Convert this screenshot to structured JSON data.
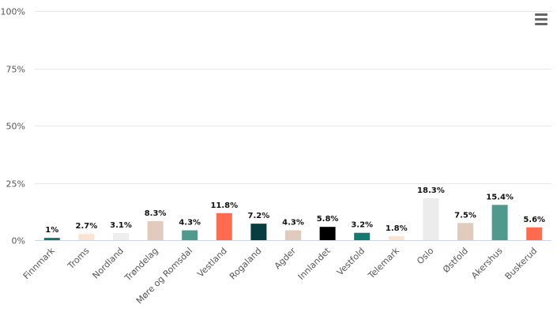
{
  "chart_data": {
    "type": "bar",
    "categories": [
      "Finnmark",
      "Troms",
      "Nordland",
      "Trøndelag",
      "Møre og Romsdal",
      "Vestland",
      "Rogaland",
      "Agder",
      "Innlandet",
      "Vestfold",
      "Telemark",
      "Oslo",
      "Østfold",
      "Akershus",
      "Buskerud"
    ],
    "values": [
      1,
      2.7,
      3.1,
      8.3,
      4.3,
      11.8,
      7.2,
      4.3,
      5.8,
      3.2,
      1.8,
      18.3,
      7.5,
      15.4,
      5.6
    ],
    "data_labels": [
      "1%",
      "2.7%",
      "3.1%",
      "8.3%",
      "4.3%",
      "11.8%",
      "7.2%",
      "4.3%",
      "5.8%",
      "3.2%",
      "1.8%",
      "18.3%",
      "7.5%",
      "15.4%",
      "5.6%"
    ],
    "colors": [
      "#1b6f6a",
      "#fbe3d4",
      "#eeeeee",
      "#e0cbbd",
      "#4f9a8c",
      "#ff6b4f",
      "#053d40",
      "#e0cbbd",
      "#000000",
      "#137a70",
      "#fbe3d4",
      "#ececec",
      "#e0cbbd",
      "#4f9a8c",
      "#ff6b4f"
    ],
    "ylim": [
      0,
      100
    ],
    "yticks": [
      0,
      25,
      50,
      75,
      100
    ],
    "ytick_labels": [
      "0%",
      "25%",
      "50%",
      "75%",
      "100%"
    ],
    "grid": true,
    "legend": "none"
  },
  "menu": {
    "icon": "hamburger-menu-icon"
  }
}
